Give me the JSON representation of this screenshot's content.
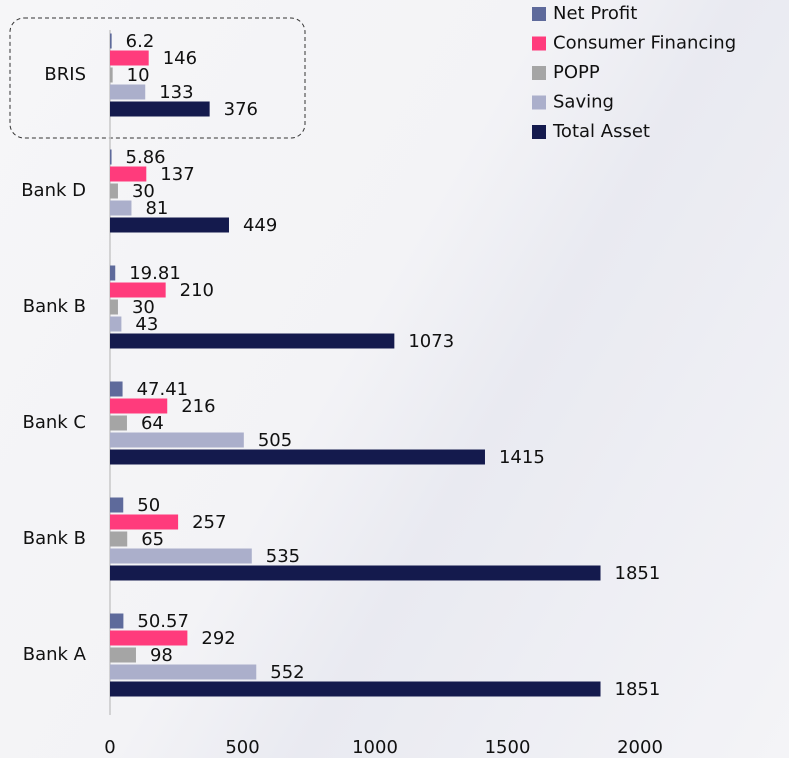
{
  "chart_data": {
    "type": "hbar",
    "categories": [
      "BRIS",
      "Bank D",
      "Bank B",
      "Bank C",
      "Bank B",
      "Bank A"
    ],
    "series": [
      {
        "name": "Net Profit",
        "color": "#5e6a9b",
        "values": [
          6.2,
          5.86,
          19.81,
          47.41,
          50,
          50.57
        ]
      },
      {
        "name": "Consumer Financing",
        "color": "#ff3b7c",
        "values": [
          146,
          137,
          210,
          216,
          257,
          292
        ]
      },
      {
        "name": "POPP",
        "color": "#a5a5a5",
        "values": [
          10,
          30,
          30,
          64,
          65,
          98
        ]
      },
      {
        "name": "Saving",
        "color": "#abafcb",
        "values": [
          133,
          81,
          43,
          505,
          535,
          552
        ]
      },
      {
        "name": "Total Asset",
        "color": "#141a4d",
        "values": [
          376,
          449,
          1073,
          1415,
          1851,
          1851
        ]
      }
    ],
    "xlim": [
      0,
      2000
    ],
    "xticks": [
      0,
      500,
      1000,
      1500,
      2000
    ],
    "legend": "top-right"
  }
}
